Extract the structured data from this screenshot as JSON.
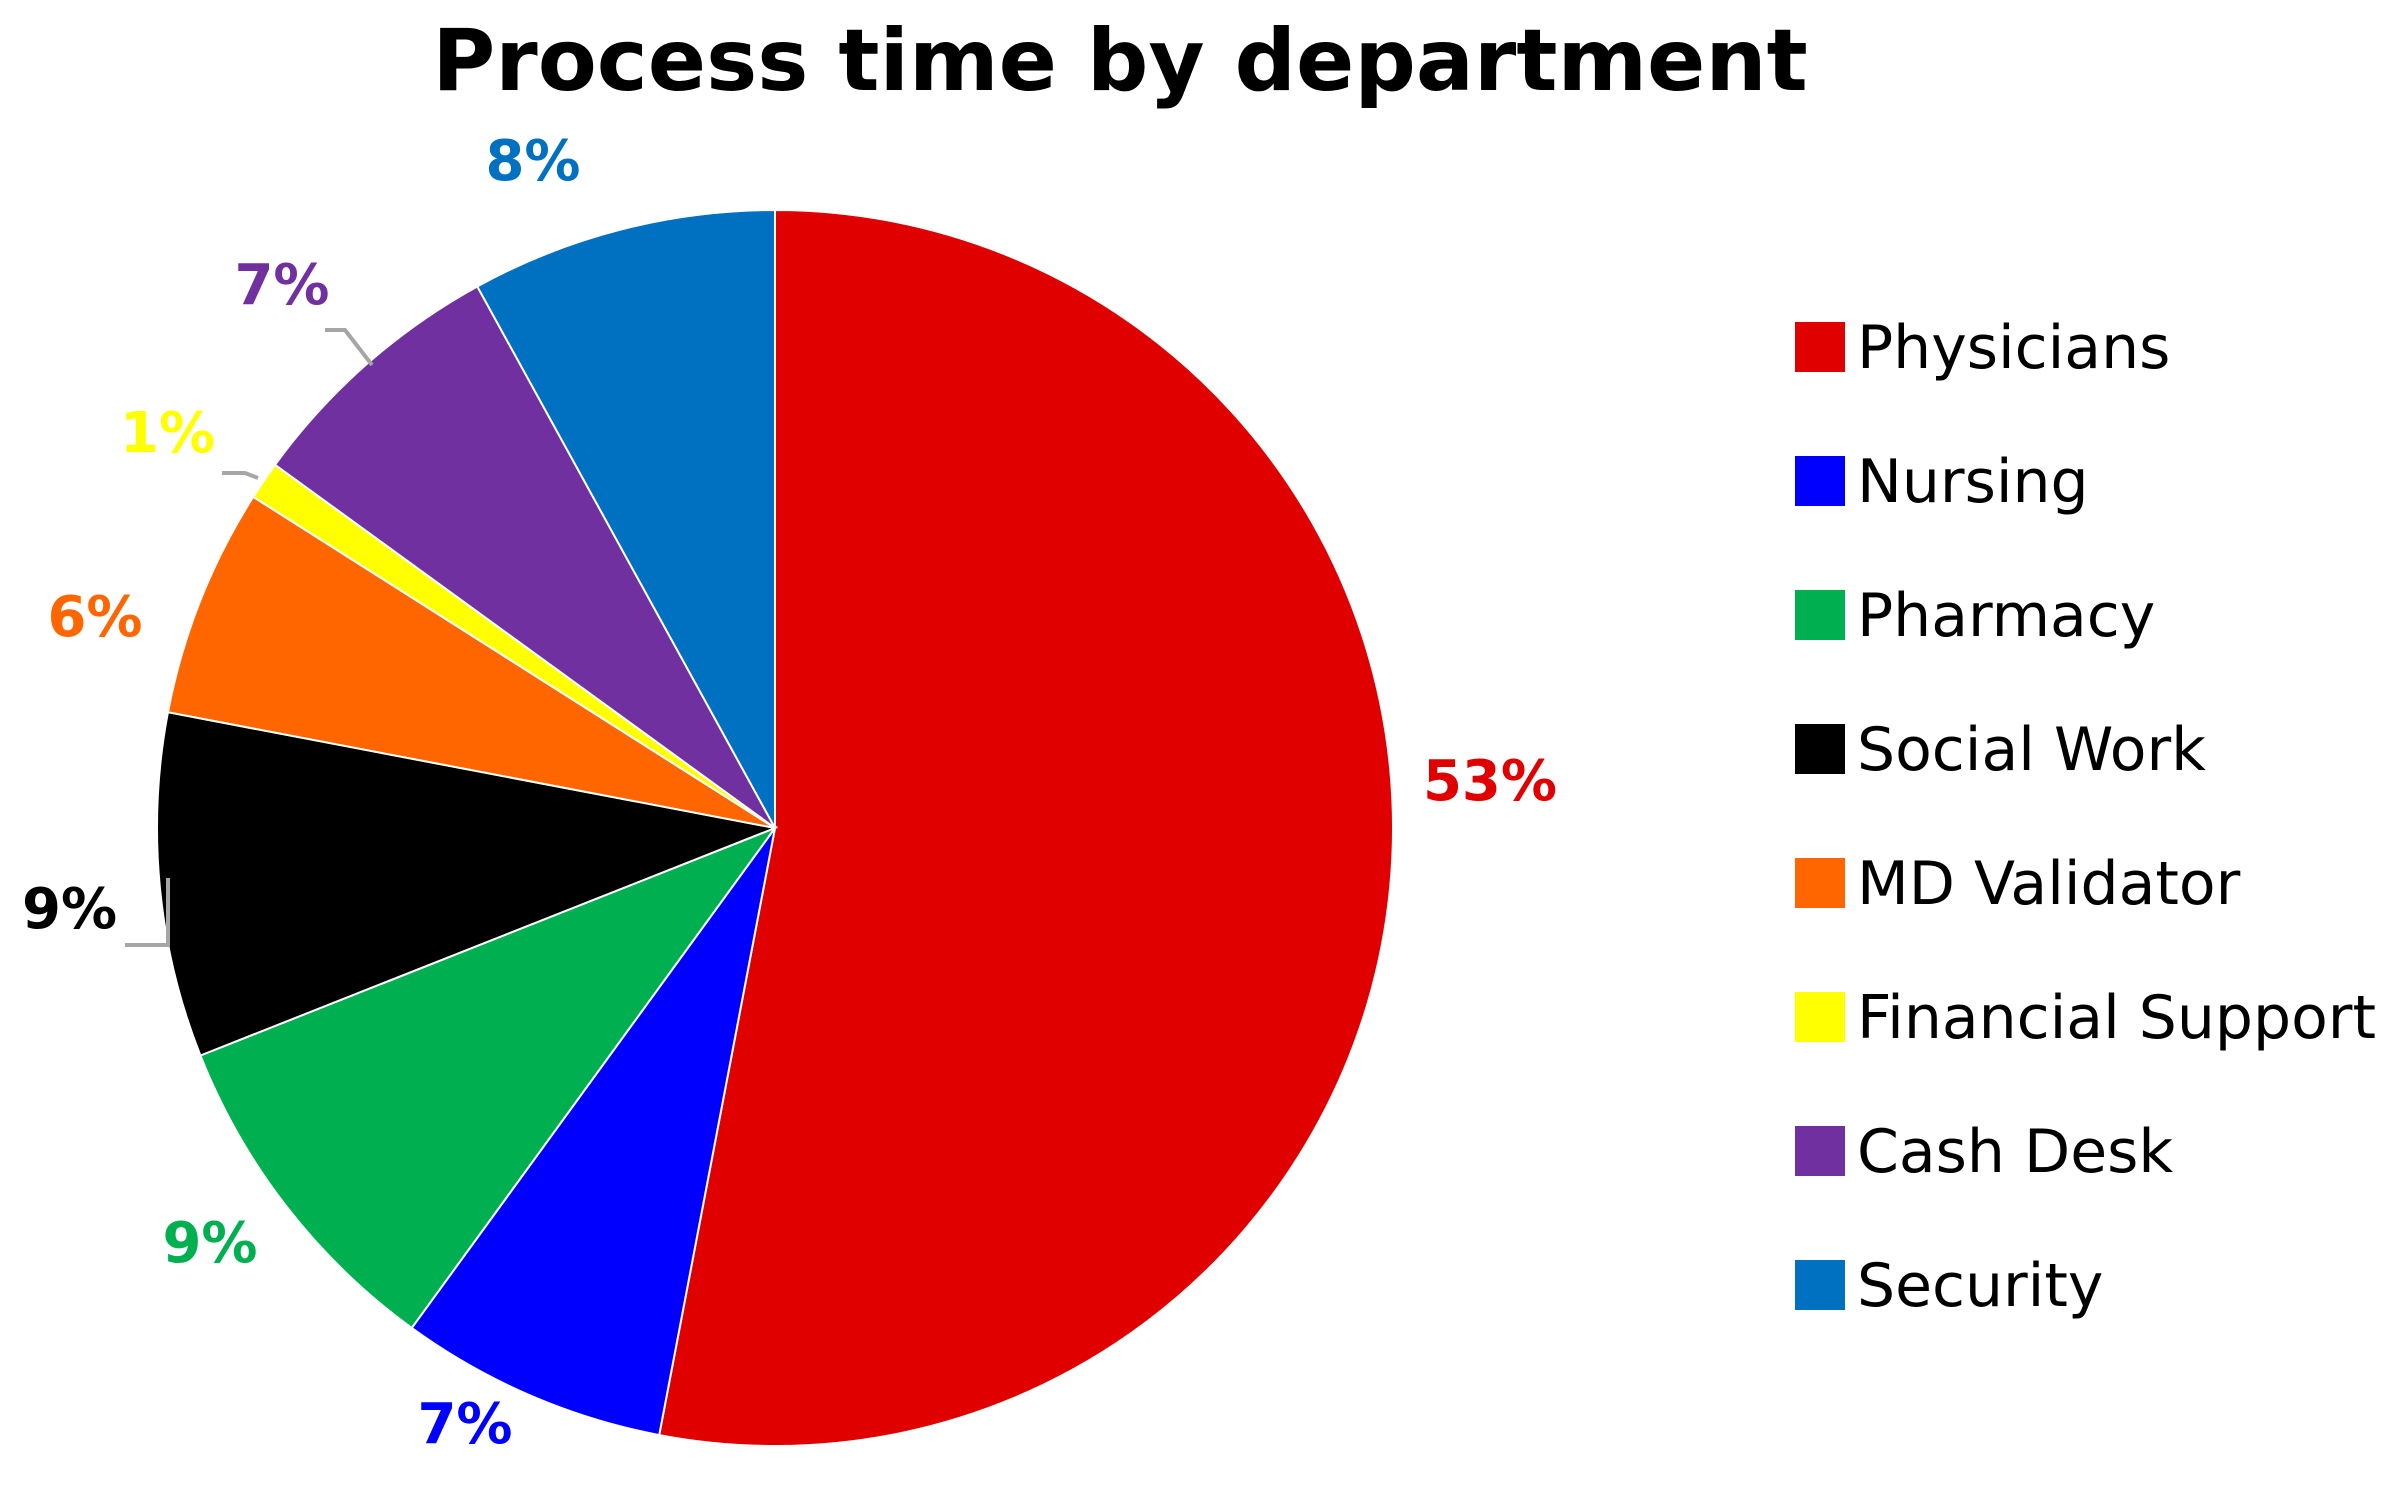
{
  "chart_data": {
    "type": "pie",
    "title": "Process time by department",
    "legend_position": "right",
    "start_angle": "12 o'clock, clockwise",
    "slices": [
      {
        "name": "Physicians",
        "value": 53,
        "label": "53%",
        "color": "#E00000"
      },
      {
        "name": "Nursing",
        "value": 7,
        "label": "7%",
        "color": "#0000FF"
      },
      {
        "name": "Pharmacy",
        "value": 9,
        "label": "9%",
        "color": "#00B050"
      },
      {
        "name": "Social Work",
        "value": 9,
        "label": "9%",
        "color": "#000000"
      },
      {
        "name": "MD Validator",
        "value": 6,
        "label": "6%",
        "color": "#FF6600"
      },
      {
        "name": "Financial Support",
        "value": 1,
        "label": "1%",
        "color": "#FFFF00"
      },
      {
        "name": "Cash Desk",
        "value": 7,
        "label": "7%",
        "color": "#7030A0"
      },
      {
        "name": "Security",
        "value": 8,
        "label": "8%",
        "color": "#0070C0"
      }
    ]
  }
}
